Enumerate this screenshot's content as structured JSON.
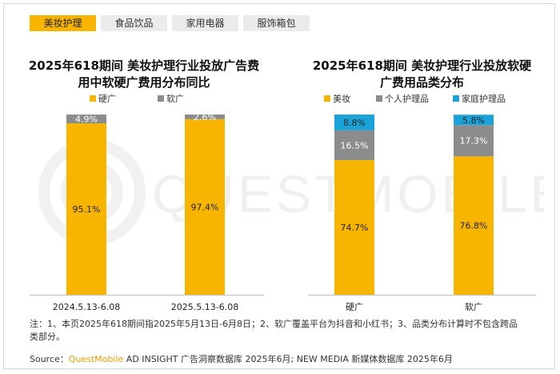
{
  "tabs": [
    "美妆护理",
    "食品饮品",
    "家用电器",
    "服饰箱包"
  ],
  "active_tab": 0,
  "colors": {
    "accent": "#f7b500",
    "hard": "#f7b500",
    "soft": "#8c8c8c",
    "personal": "#8c8c8c",
    "home": "#1aa3d9"
  },
  "watermark": "QUESTMOBILE",
  "chart_data": [
    {
      "type": "bar",
      "stacked": true,
      "normalized": true,
      "title": "2025年618期间 美妆护理行业投放广告费用中软硬广费用分布同比",
      "categories": [
        "2024.5.13-6.08",
        "2025.5.13-6.08"
      ],
      "series": [
        {
          "name": "硬广",
          "values": [
            95.1,
            97.4
          ],
          "labels": [
            "95.1%",
            "97.4%"
          ]
        },
        {
          "name": "软广",
          "values": [
            4.9,
            2.6
          ],
          "labels": [
            "4.9%",
            "2.6%"
          ]
        }
      ],
      "ylim": [
        0,
        100
      ],
      "legend": "top-left"
    },
    {
      "type": "bar",
      "stacked": true,
      "normalized": true,
      "title": "2025年618期间 美妆护理行业投放软硬广费用品类分布",
      "categories": [
        "硬广",
        "软广"
      ],
      "series": [
        {
          "name": "美妆",
          "values": [
            74.7,
            76.8
          ],
          "labels": [
            "74.7%",
            "76.8%"
          ]
        },
        {
          "name": "个人护理品",
          "values": [
            16.5,
            17.3
          ],
          "labels": [
            "16.5%",
            "17.3%"
          ]
        },
        {
          "name": "家庭护理品",
          "values": [
            8.8,
            5.8
          ],
          "labels": [
            "8.8%",
            "5.8%"
          ]
        }
      ],
      "ylim": [
        0,
        100
      ],
      "legend": "top-left"
    }
  ],
  "note": "注：1、本页2025年618期间指2025年5月13日-6月8日；2、软广覆盖平台为抖音和小红书；3、品类分布计算时不包含跨品类部分。",
  "source": {
    "prefix": "Source：",
    "brand": "QuestMobile",
    "rest": " AD INSIGHT 广告洞察数据库 2025年6月; NEW MEDIA 新媒体数据库 2025年6月"
  }
}
